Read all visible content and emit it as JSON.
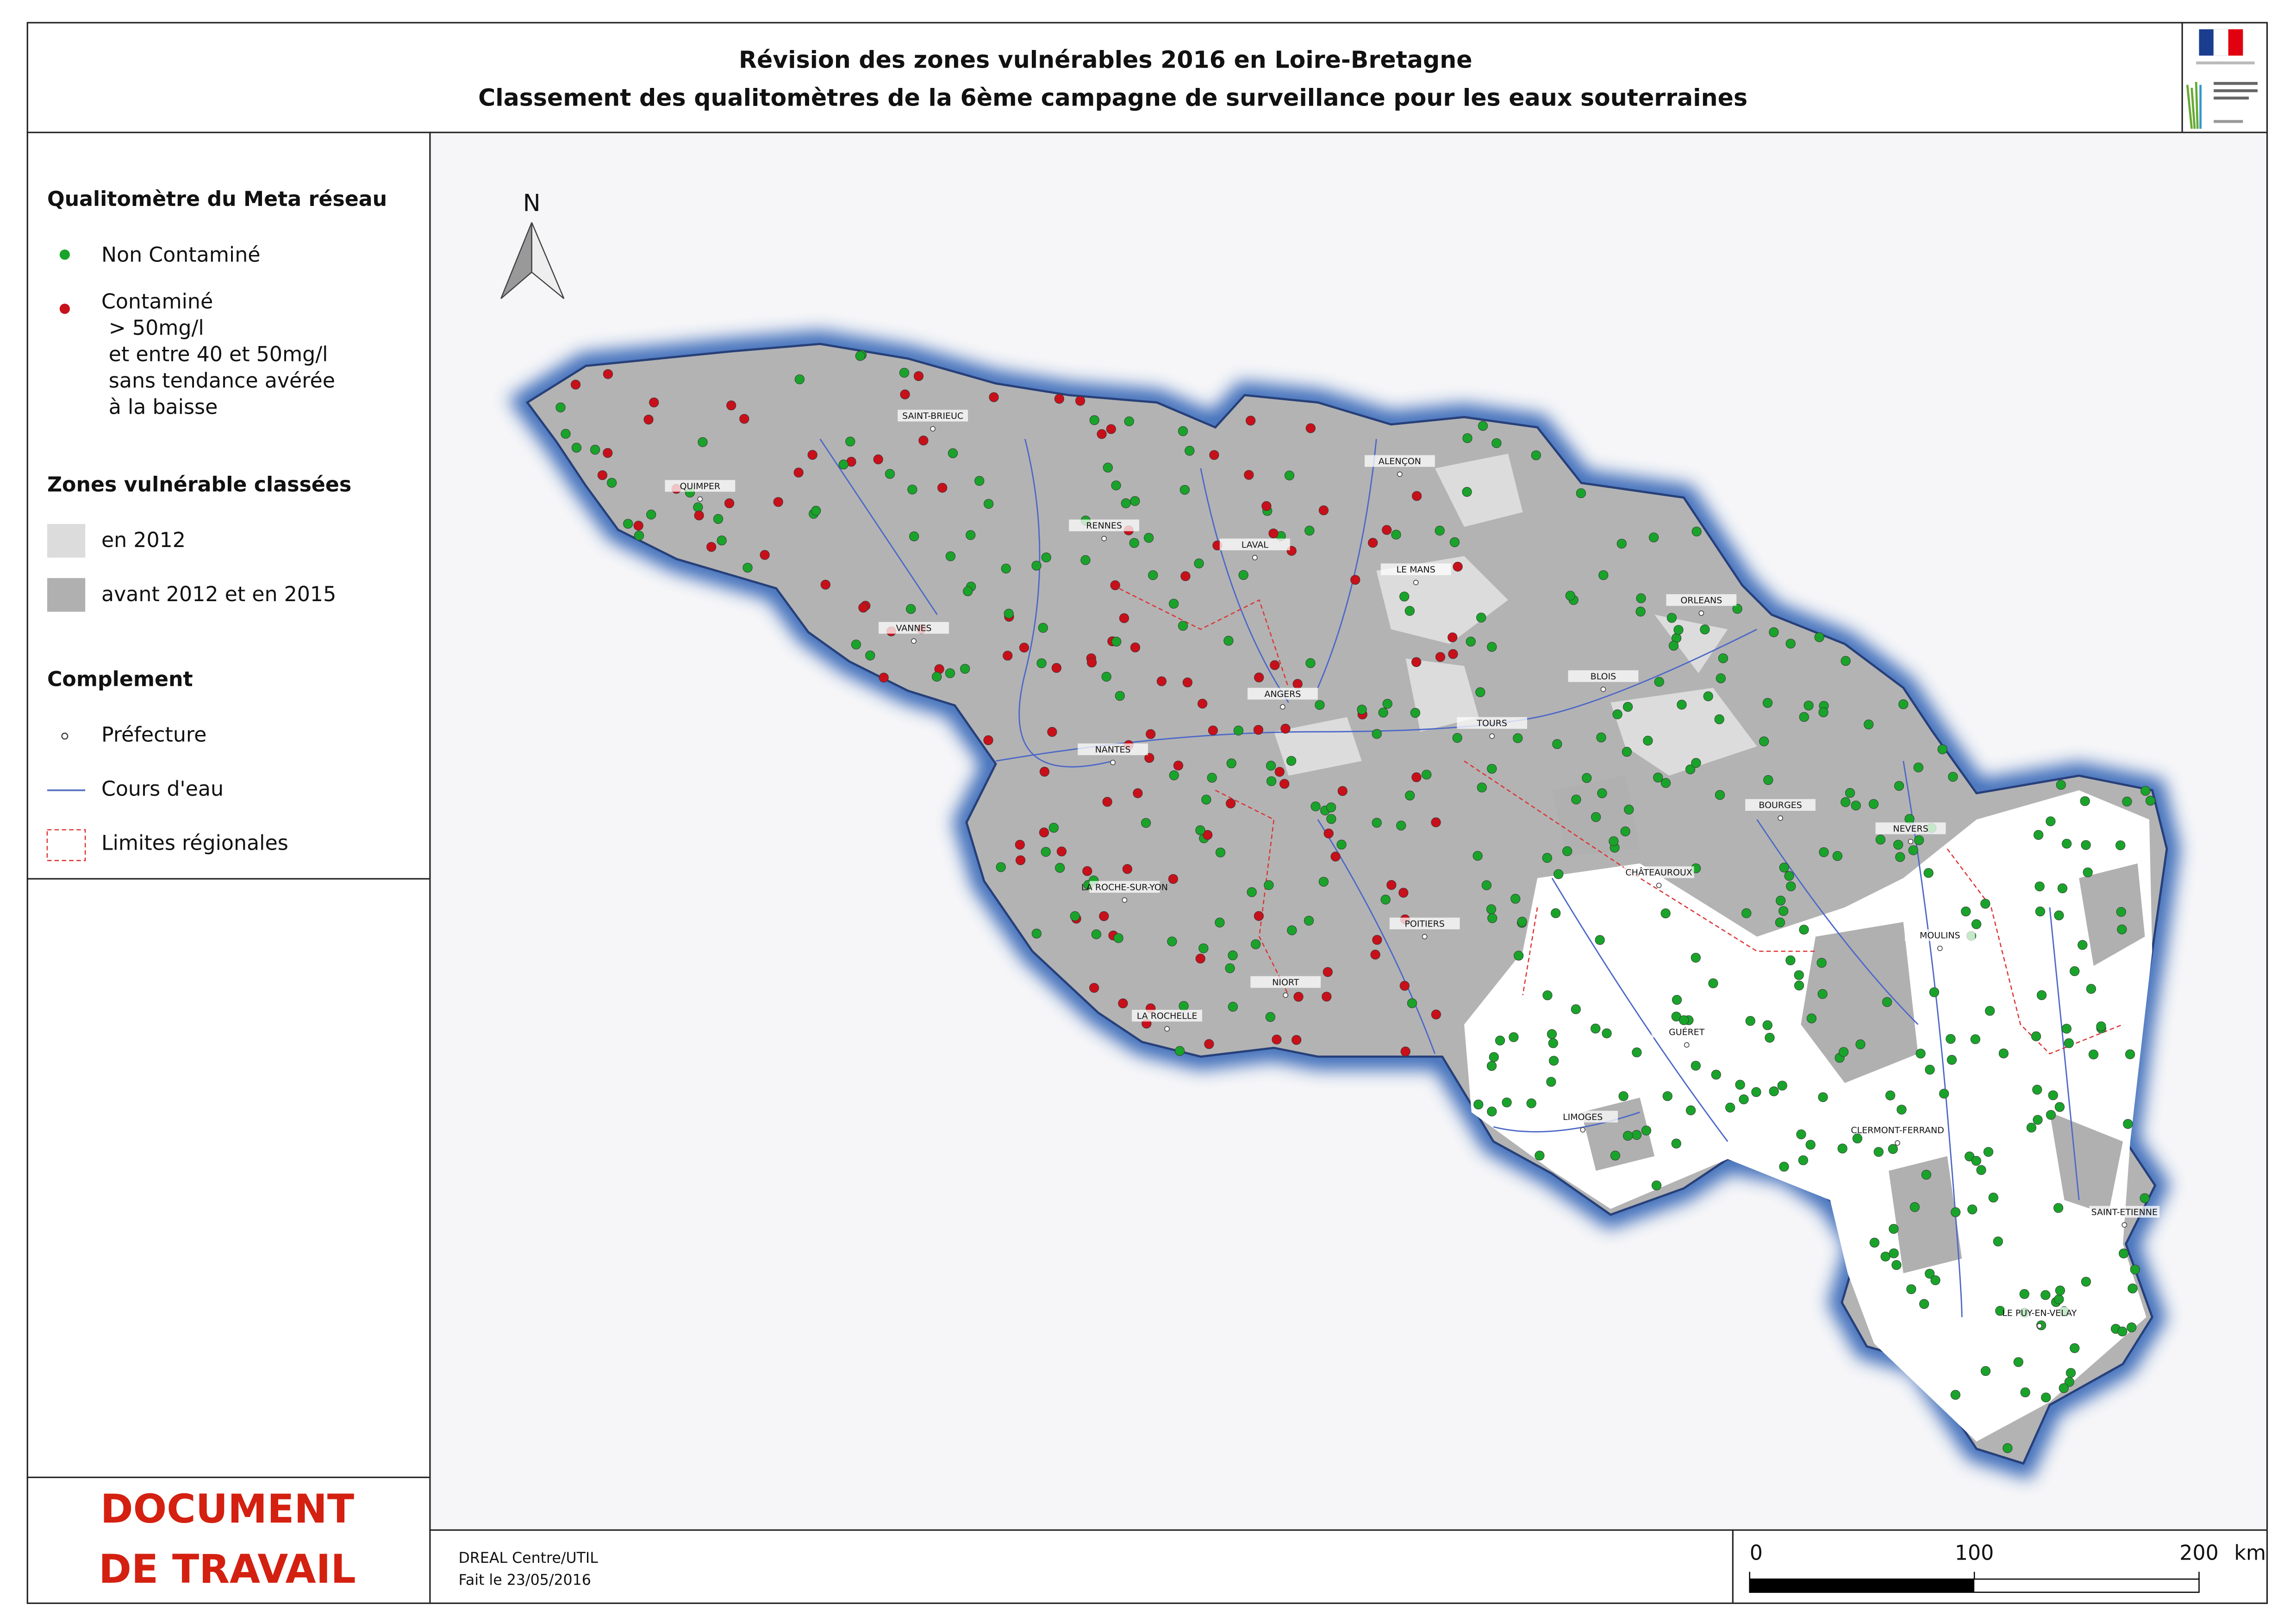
{
  "header": {
    "title_line1": "Révision des zones vulnérables 2016 en Loire-Bretagne",
    "title_line2": "Classement des qualitomètres de la 6ème campagne de surveillance pour les eaux souterraines"
  },
  "legend": {
    "section1_title": "Qualitomètre du Meta réseau",
    "non_contamine": "Non Contaminé",
    "contamine": "Contaminé",
    "contamine_lines": [
      "> 50mg/l",
      "et entre 40 et 50mg/l",
      "sans tendance avérée",
      "à la baisse"
    ],
    "section2_title": "Zones vulnérable classées",
    "zone_2012": "en 2012",
    "zone_avant": "avant 2012 et en 2015",
    "section3_title": "Complement",
    "prefecture": "Préfecture",
    "cours_eau": "Cours d'eau",
    "limites": "Limites régionales"
  },
  "stamp": {
    "line1": "DOCUMENT",
    "line2": "DE TRAVAIL"
  },
  "footer": {
    "author": "DREAL Centre/UTIL",
    "date": "Fait le 23/05/2016"
  },
  "scale_bar": {
    "ticks": [
      0,
      100,
      200
    ],
    "unit": "km"
  },
  "north": "N",
  "cities": [
    "SAINT-BRIEUC",
    "QUIMPER",
    "RENNES",
    "LAVAL",
    "ALENÇON",
    "LE MANS",
    "ORLEANS",
    "VANNES",
    "ANGERS",
    "BLOIS",
    "TOURS",
    "NANTES",
    "BOURGES",
    "NEVERS",
    "CHÂTEAUROUX",
    "LA ROCHE-SUR-YON",
    "POITIERS",
    "MOULINS",
    "NIORT",
    "LA ROCHELLE",
    "GUÉRET",
    "LIMOGES",
    "CLERMONT-FERRAND",
    "SAINT-ETIENNE",
    "LE PUY-EN-VELAY"
  ]
}
